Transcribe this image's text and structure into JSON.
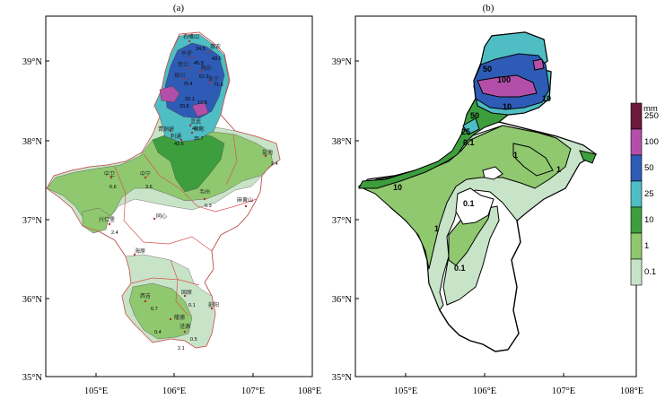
{
  "panels": [
    {
      "title": "(a)",
      "lat_ticks": [
        "39°N",
        "38°N",
        "37°N",
        "36°N",
        "35°N"
      ],
      "lon_ticks": [
        "105°E",
        "106°E",
        "107°E",
        "108°E"
      ],
      "stations": [
        {
          "name": "石嘴山",
          "value": ""
        },
        {
          "name": "惠农",
          "value": "43.5"
        },
        {
          "name": "平罗",
          "value": ""
        },
        {
          "name": "贺兰",
          "value": ""
        },
        {
          "name": "陶乐",
          "value": "67.3"
        },
        {
          "name": "银川",
          "value": "76.4"
        },
        {
          "name": "永宁",
          "value": "71.6"
        },
        {
          "name": "灵武",
          "value": "40.0"
        },
        {
          "name": "青铜峡",
          "value": ""
        },
        {
          "name": "吴忠",
          "value": "35.7"
        },
        {
          "name": "利通",
          "value": "43.5"
        },
        {
          "name": "中卫",
          "value": "6.6"
        },
        {
          "name": "中宁",
          "value": "3.6"
        },
        {
          "name": "盐池",
          "value": "2.4"
        },
        {
          "name": "同心",
          "value": ""
        },
        {
          "name": "韦州",
          "value": "0.3"
        },
        {
          "name": "麻黄山",
          "value": ""
        },
        {
          "name": "兴仁堡",
          "value": "2.4"
        },
        {
          "name": "海原",
          "value": ""
        },
        {
          "name": "西吉",
          "value": ""
        },
        {
          "name": "固原",
          "value": "0.1"
        },
        {
          "name": "彭阳",
          "value": ""
        },
        {
          "name": "隆德",
          "value": "6.7"
        },
        {
          "name": "泾源",
          "value": "0.5"
        }
      ],
      "extra_values": [
        "24.5",
        "45.9",
        "32.1",
        "20.8",
        "13.8",
        "0.4",
        "2.1"
      ]
    },
    {
      "title": "(b)",
      "lat_ticks": [
        "39°N",
        "38°N",
        "37°N",
        "36°N",
        "35°N"
      ],
      "lon_ticks": [
        "105°E",
        "106°E",
        "107°E",
        "108°E"
      ],
      "contour_labels": [
        "50",
        "100",
        "10",
        "50",
        "10",
        "25",
        "0.1",
        "1",
        "1",
        "10",
        "0.1",
        "1",
        "0.1"
      ]
    }
  ],
  "legend": {
    "unit": "mm",
    "levels": [
      "250",
      "100",
      "50",
      "25",
      "10",
      "1",
      "0.1"
    ],
    "colors": [
      "#6b1a3a",
      "#b34fa8",
      "#2e5bb5",
      "#4fbdc4",
      "#3d9e3d",
      "#8fc86e",
      "#c8e4c8"
    ]
  },
  "colors": {
    "lv01": "#c8e4c8",
    "lv1": "#8fc86e",
    "lv10": "#3d9e3d",
    "lv25": "#4fbdc4",
    "lv50": "#2e5bb5",
    "lv100": "#b34fa8",
    "lv250": "#6b1a3a",
    "province_border": "#d9534f"
  }
}
